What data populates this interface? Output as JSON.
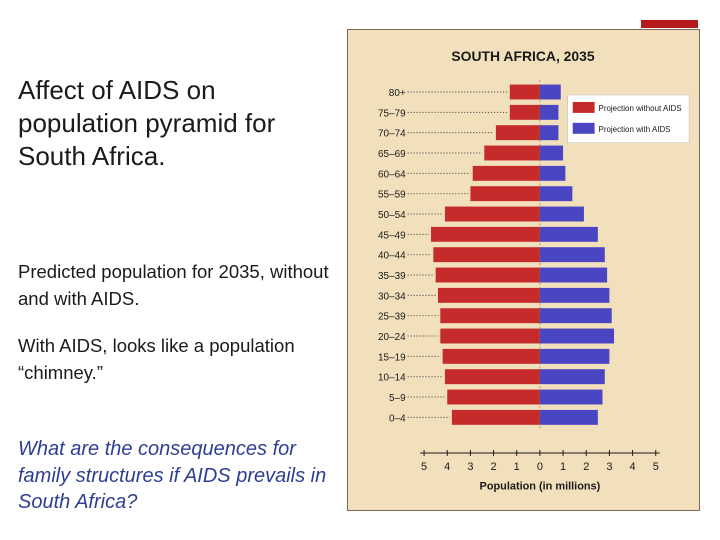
{
  "slide": {
    "title": "Affect of AIDS on population pyramid for South Africa.",
    "paragraph1": "Predicted population for 2035, without and with AIDS.",
    "paragraph2": "With AIDS, looks like a population “chimney.”",
    "question": "What are the consequences for family structures if AIDS prevails in South Africa?"
  },
  "colors": {
    "accent": "#b51a1a",
    "chart_background": "#f2e0bc",
    "without_aids": "#c62b2b",
    "with_aids": "#4a45c2",
    "question_text": "#2e3f92"
  },
  "chart_data": {
    "type": "bar",
    "orientation": "horizontal-population-pyramid",
    "title": "SOUTH AFRICA, 2035",
    "xlabel": "Population (in millions)",
    "xlim": [
      -5,
      5
    ],
    "xticks": [
      5,
      4,
      3,
      2,
      1,
      0,
      1,
      2,
      3,
      4,
      5
    ],
    "categories": [
      "80+",
      "75–79",
      "70–74",
      "65–69",
      "60–64",
      "55–59",
      "50–54",
      "45–49",
      "40–44",
      "35–39",
      "30–34",
      "25–39",
      "20–24",
      "15–19",
      "10–14",
      "5–9",
      "0–4"
    ],
    "legend_position": "top-right",
    "series": [
      {
        "name": "Projection without AIDS",
        "side": "left",
        "color": "#c62b2b",
        "values": [
          1.3,
          1.3,
          1.9,
          2.4,
          2.9,
          3.0,
          4.1,
          4.7,
          4.6,
          4.5,
          4.4,
          4.3,
          4.3,
          4.2,
          4.1,
          4.0,
          3.8
        ]
      },
      {
        "name": "Projection with AIDS",
        "side": "right",
        "color": "#4a45c2",
        "values": [
          0.9,
          0.8,
          0.8,
          1.0,
          1.1,
          1.4,
          1.9,
          2.5,
          2.8,
          2.9,
          3.0,
          3.1,
          3.2,
          3.0,
          2.8,
          2.7,
          2.5
        ]
      }
    ]
  }
}
